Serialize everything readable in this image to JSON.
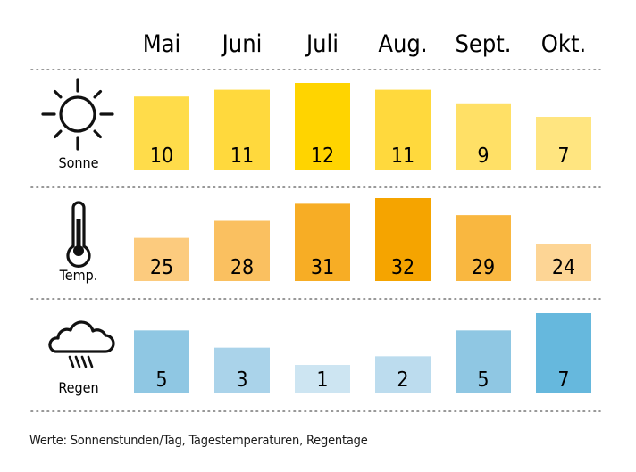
{
  "chart_data": {
    "type": "bar",
    "categories": [
      "Mai",
      "Juni",
      "Juli",
      "Aug.",
      "Sept.",
      "Okt."
    ],
    "series": [
      {
        "name": "Sonne",
        "icon": "sun-icon",
        "values": [
          10,
          11,
          12,
          11,
          9,
          7
        ],
        "colors": [
          "#FFDC4A",
          "#FFD93D",
          "#FFD400",
          "#FFD93D",
          "#FFE066",
          "#FFE580"
        ]
      },
      {
        "name": "Temp.",
        "icon": "thermometer-icon",
        "values": [
          25,
          28,
          31,
          32,
          29,
          24
        ],
        "colors": [
          "#FCCB7E",
          "#FAC060",
          "#F7AD25",
          "#F5A400",
          "#F9B740",
          "#FDD595"
        ]
      },
      {
        "name": "Regen",
        "icon": "rain-cloud-icon",
        "values": [
          5,
          3,
          1,
          2,
          5,
          7
        ],
        "colors": [
          "#8FC7E3",
          "#AAD3EA",
          "#CDE5F2",
          "#BCDCEE",
          "#8FC7E3",
          "#66B8DD"
        ]
      }
    ],
    "grid": "dotted row separators",
    "footnote": "Werte: Sonnenstunden/Tag, Tagestemperaturen, Regentage"
  }
}
